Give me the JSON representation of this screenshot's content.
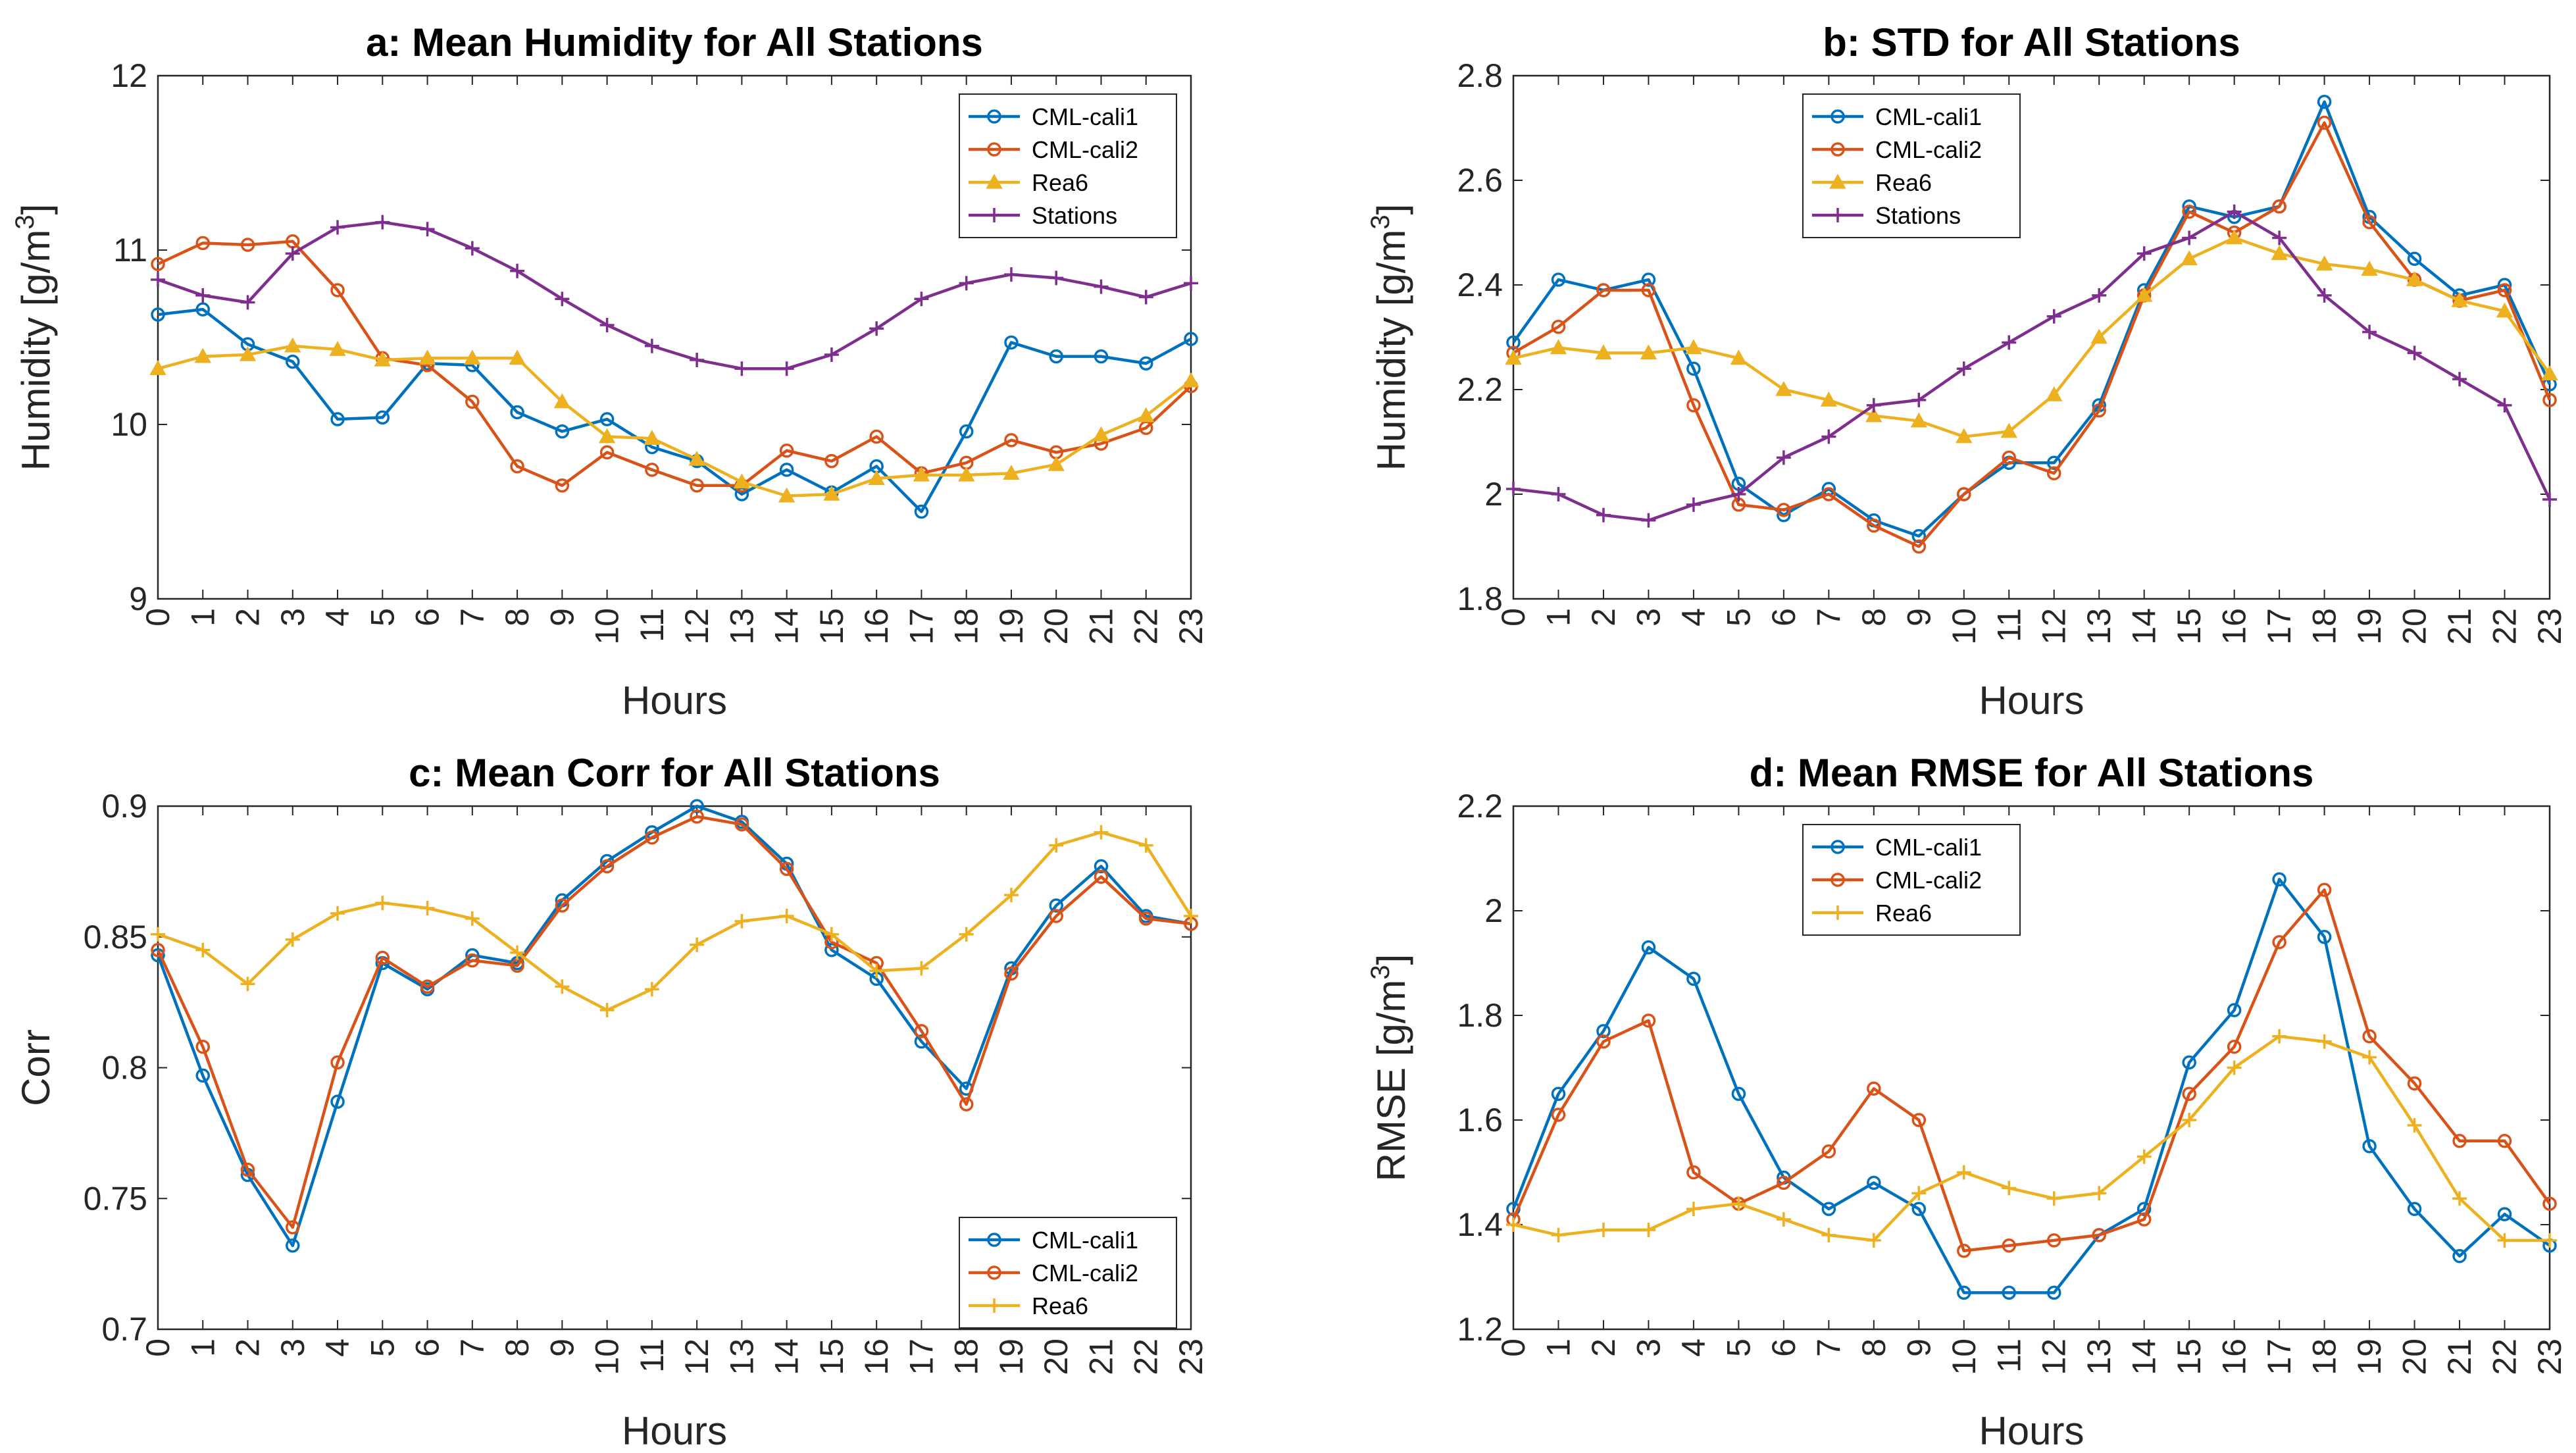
{
  "colors": {
    "cml_cali1": "#0072BD",
    "cml_cali2": "#D95319",
    "rea6": "#EDB120",
    "stations": "#7E2F8E"
  },
  "chart_data": [
    {
      "id": "a",
      "type": "line",
      "title": "a: Mean Humidity for All Stations",
      "xlabel": "Hours",
      "ylabel_main": "Humidity [g/m",
      "ylabel_sup": "3",
      "ylabel_end": "]",
      "x": [
        0,
        1,
        2,
        3,
        4,
        5,
        6,
        7,
        8,
        9,
        10,
        11,
        12,
        13,
        14,
        15,
        16,
        17,
        18,
        19,
        20,
        21,
        22,
        23
      ],
      "xlim": [
        0,
        23
      ],
      "ylim": [
        9,
        12
      ],
      "yticks": [
        9,
        10,
        11,
        12
      ],
      "ytick_labels": [
        "9",
        "10",
        "11",
        "12"
      ],
      "legend_position": "top-right",
      "series": [
        {
          "name": "CML-cali1",
          "color_key": "cml_cali1",
          "marker": "circle",
          "values": [
            10.63,
            10.66,
            10.46,
            10.36,
            10.03,
            10.04,
            10.35,
            10.34,
            10.07,
            9.96,
            10.03,
            9.87,
            9.79,
            9.6,
            9.74,
            9.61,
            9.76,
            9.5,
            9.96,
            10.47,
            10.39,
            10.39,
            10.35,
            10.49
          ]
        },
        {
          "name": "CML-cali2",
          "color_key": "cml_cali2",
          "marker": "circle",
          "values": [
            10.92,
            11.04,
            11.03,
            11.05,
            10.77,
            10.38,
            10.34,
            10.13,
            9.76,
            9.65,
            9.84,
            9.74,
            9.65,
            9.65,
            9.85,
            9.79,
            9.93,
            9.72,
            9.78,
            9.91,
            9.84,
            9.89,
            9.98,
            10.22
          ]
        },
        {
          "name": "Rea6",
          "color_key": "rea6",
          "marker": "triangle",
          "values": [
            10.32,
            10.39,
            10.4,
            10.45,
            10.43,
            10.37,
            10.38,
            10.38,
            10.38,
            10.13,
            9.93,
            9.92,
            9.8,
            9.67,
            9.59,
            9.6,
            9.69,
            9.71,
            9.71,
            9.72,
            9.77,
            9.94,
            10.05,
            10.25
          ]
        },
        {
          "name": "Stations",
          "color_key": "stations",
          "marker": "plus",
          "values": [
            10.83,
            10.74,
            10.7,
            10.98,
            11.13,
            11.16,
            11.12,
            11.01,
            10.88,
            10.72,
            10.57,
            10.45,
            10.37,
            10.32,
            10.32,
            10.4,
            10.55,
            10.72,
            10.81,
            10.86,
            10.84,
            10.79,
            10.73,
            10.81
          ]
        }
      ]
    },
    {
      "id": "b",
      "type": "line",
      "title": "b: STD for All Stations",
      "xlabel": "Hours",
      "ylabel_main": "Humidity [g/m",
      "ylabel_sup": "3",
      "ylabel_end": "]",
      "x": [
        0,
        1,
        2,
        3,
        4,
        5,
        6,
        7,
        8,
        9,
        10,
        11,
        12,
        13,
        14,
        15,
        16,
        17,
        18,
        19,
        20,
        21,
        22,
        23
      ],
      "xlim": [
        0,
        23
      ],
      "ylim": [
        1.8,
        2.8
      ],
      "yticks": [
        1.8,
        2.0,
        2.2,
        2.4,
        2.6,
        2.8
      ],
      "ytick_labels": [
        "1.8",
        "2",
        "2.2",
        "2.4",
        "2.6",
        "2.8"
      ],
      "legend_position": "top-left",
      "series": [
        {
          "name": "CML-cali1",
          "color_key": "cml_cali1",
          "marker": "circle",
          "values": [
            2.29,
            2.41,
            2.39,
            2.41,
            2.24,
            2.02,
            1.96,
            2.01,
            1.95,
            1.92,
            2.0,
            2.06,
            2.06,
            2.17,
            2.39,
            2.55,
            2.53,
            2.55,
            2.75,
            2.53,
            2.45,
            2.38,
            2.4,
            2.21
          ]
        },
        {
          "name": "CML-cali2",
          "color_key": "cml_cali2",
          "marker": "circle",
          "values": [
            2.27,
            2.32,
            2.39,
            2.39,
            2.17,
            1.98,
            1.97,
            2.0,
            1.94,
            1.9,
            2.0,
            2.07,
            2.04,
            2.16,
            2.38,
            2.54,
            2.5,
            2.55,
            2.71,
            2.52,
            2.41,
            2.37,
            2.39,
            2.18
          ]
        },
        {
          "name": "Rea6",
          "color_key": "rea6",
          "marker": "triangle",
          "values": [
            2.26,
            2.28,
            2.27,
            2.27,
            2.28,
            2.26,
            2.2,
            2.18,
            2.15,
            2.14,
            2.11,
            2.12,
            2.19,
            2.3,
            2.38,
            2.45,
            2.49,
            2.46,
            2.44,
            2.43,
            2.41,
            2.37,
            2.35,
            2.23
          ]
        },
        {
          "name": "Stations",
          "color_key": "stations",
          "marker": "plus",
          "values": [
            2.01,
            2.0,
            1.96,
            1.95,
            1.98,
            2.0,
            2.07,
            2.11,
            2.17,
            2.18,
            2.24,
            2.29,
            2.34,
            2.38,
            2.46,
            2.49,
            2.54,
            2.49,
            2.38,
            2.31,
            2.27,
            2.22,
            2.17,
            1.99
          ]
        }
      ]
    },
    {
      "id": "c",
      "type": "line",
      "title": "c: Mean Corr for All Stations",
      "xlabel": "Hours",
      "ylabel_main": "Corr",
      "ylabel_sup": "",
      "ylabel_end": "",
      "x": [
        0,
        1,
        2,
        3,
        4,
        5,
        6,
        7,
        8,
        9,
        10,
        11,
        12,
        13,
        14,
        15,
        16,
        17,
        18,
        19,
        20,
        21,
        22,
        23
      ],
      "xlim": [
        0,
        23
      ],
      "ylim": [
        0.7,
        0.9
      ],
      "yticks": [
        0.7,
        0.75,
        0.8,
        0.85,
        0.9
      ],
      "ytick_labels": [
        "0.7",
        "0.75",
        "0.8",
        "0.85",
        "0.9"
      ],
      "legend_position": "bottom-right",
      "series": [
        {
          "name": "CML-cali1",
          "color_key": "cml_cali1",
          "marker": "circle",
          "values": [
            0.843,
            0.797,
            0.759,
            0.732,
            0.787,
            0.84,
            0.83,
            0.843,
            0.84,
            0.864,
            0.879,
            0.89,
            0.9,
            0.894,
            0.878,
            0.845,
            0.834,
            0.81,
            0.792,
            0.838,
            0.862,
            0.877,
            0.858,
            0.855
          ]
        },
        {
          "name": "CML-cali2",
          "color_key": "cml_cali2",
          "marker": "circle",
          "values": [
            0.845,
            0.808,
            0.761,
            0.739,
            0.802,
            0.842,
            0.831,
            0.841,
            0.839,
            0.862,
            0.877,
            0.888,
            0.896,
            0.893,
            0.876,
            0.848,
            0.84,
            0.814,
            0.786,
            0.836,
            0.858,
            0.873,
            0.857,
            0.855
          ]
        },
        {
          "name": "Rea6",
          "color_key": "rea6",
          "marker": "plus",
          "values": [
            0.851,
            0.845,
            0.832,
            0.849,
            0.859,
            0.863,
            0.861,
            0.857,
            0.844,
            0.831,
            0.822,
            0.83,
            0.847,
            0.856,
            0.858,
            0.851,
            0.837,
            0.838,
            0.851,
            0.866,
            0.885,
            0.89,
            0.885,
            0.858
          ]
        }
      ]
    },
    {
      "id": "d",
      "type": "line",
      "title": "d: Mean RMSE for All Stations",
      "xlabel": "Hours",
      "ylabel_main": "RMSE [g/m",
      "ylabel_sup": "3",
      "ylabel_end": "]",
      "x": [
        0,
        1,
        2,
        3,
        4,
        5,
        6,
        7,
        8,
        9,
        10,
        11,
        12,
        13,
        14,
        15,
        16,
        17,
        18,
        19,
        20,
        21,
        22,
        23
      ],
      "xlim": [
        0,
        23
      ],
      "ylim": [
        1.2,
        2.2
      ],
      "yticks": [
        1.2,
        1.4,
        1.6,
        1.8,
        2.0,
        2.2
      ],
      "ytick_labels": [
        "1.2",
        "1.4",
        "1.6",
        "1.8",
        "2",
        "2.2"
      ],
      "legend_position": "top-left",
      "series": [
        {
          "name": "CML-cali1",
          "color_key": "cml_cali1",
          "marker": "circle",
          "values": [
            1.43,
            1.65,
            1.77,
            1.93,
            1.87,
            1.65,
            1.49,
            1.43,
            1.48,
            1.43,
            1.27,
            1.27,
            1.27,
            1.38,
            1.43,
            1.71,
            1.81,
            2.06,
            1.95,
            1.55,
            1.43,
            1.34,
            1.42,
            1.36
          ]
        },
        {
          "name": "CML-cali2",
          "color_key": "cml_cali2",
          "marker": "circle",
          "values": [
            1.41,
            1.61,
            1.75,
            1.79,
            1.5,
            1.44,
            1.48,
            1.54,
            1.66,
            1.6,
            1.35,
            1.36,
            1.37,
            1.38,
            1.41,
            1.65,
            1.74,
            1.94,
            2.04,
            1.76,
            1.67,
            1.56,
            1.56,
            1.44
          ]
        },
        {
          "name": "Rea6",
          "color_key": "rea6",
          "marker": "plus",
          "values": [
            1.4,
            1.38,
            1.39,
            1.39,
            1.43,
            1.44,
            1.41,
            1.38,
            1.37,
            1.46,
            1.5,
            1.47,
            1.45,
            1.46,
            1.53,
            1.6,
            1.7,
            1.76,
            1.75,
            1.72,
            1.59,
            1.45,
            1.37,
            1.37
          ]
        }
      ]
    }
  ]
}
